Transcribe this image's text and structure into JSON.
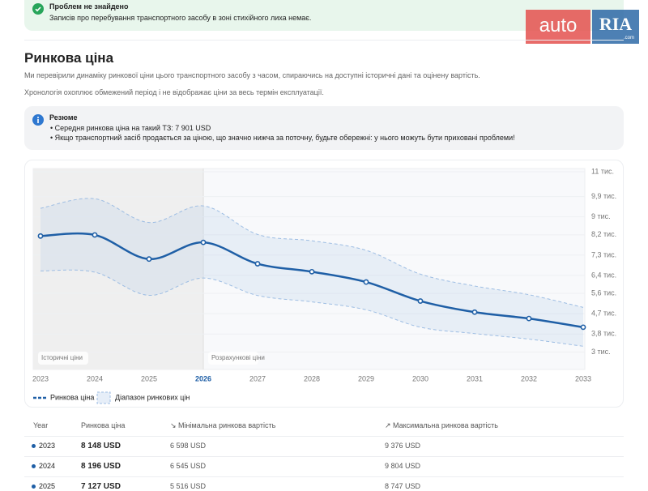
{
  "alert": {
    "title": "Проблем не знайдено",
    "text": "Записів про перебування транспортного засобу в зоні стихійного лиха немає."
  },
  "logo": {
    "left": "auto",
    "right": "RIA",
    "small": ".com"
  },
  "section": {
    "title": "Ринкова ціна",
    "p1": "Ми перевірили динаміку ринкової ціни цього транспортного засобу з часом, спираючись на доступні історичні дані та оцінену вартість.",
    "p2": "Хронологія охоплює обмежений період і не відображає ціни за весь термін експлуатації."
  },
  "summary": {
    "title": "Резюме",
    "items": [
      "Середня ринкова ціна на такий ТЗ: 7 901 USD",
      "Якщо транспортний засіб продається за ціною, що значно нижча за поточну, будьте обережні: у нього можуть бути приховані проблеми!"
    ]
  },
  "chart_data": {
    "type": "line",
    "x": [
      2023,
      2024,
      2025,
      2026,
      2027,
      2028,
      2029,
      2030,
      2031,
      2032,
      2033
    ],
    "forecast_start": 2026,
    "annotations": [
      "Історичні ціни",
      "Розрахункові ціни"
    ],
    "series": [
      {
        "name": "Ринкова ціна",
        "color": "#1f5fa6",
        "values": [
          8148,
          8196,
          7127,
          7866,
          6916,
          6564,
          6106,
          5262,
          4769,
          4487,
          4100
        ]
      }
    ],
    "band": {
      "name": "Діапазон ринкових цін",
      "color": "#9dbde3",
      "lower": [
        6598,
        6545,
        5516,
        6282,
        5508,
        5226,
        4874,
        4100,
        3818,
        3572,
        3255
      ],
      "upper": [
        9376,
        9804,
        8747,
        9486,
        8218,
        7937,
        7514,
        6458,
        5930,
        5543,
        4980
      ]
    },
    "ylim": [
      2800,
      11000
    ],
    "yticks": [
      {
        "value": 11000,
        "label": "11 тис."
      },
      {
        "value": 9900,
        "label": "9,9 тис."
      },
      {
        "value": 9000,
        "label": "9 тис."
      },
      {
        "value": 8200,
        "label": "8,2 тис."
      },
      {
        "value": 7300,
        "label": "7,3 тис."
      },
      {
        "value": 6400,
        "label": "6,4 тис."
      },
      {
        "value": 5600,
        "label": "5,6 тис."
      },
      {
        "value": 4700,
        "label": "4,7 тис."
      },
      {
        "value": 3800,
        "label": "3,8 тис."
      },
      {
        "value": 3000,
        "label": "3 тис."
      }
    ],
    "grid": true
  },
  "table": {
    "headers": [
      "Year",
      "Ринкова ціна",
      "↘ Мінімальна ринкова вартість",
      "↗ Максимальна ринкова вартість"
    ],
    "rows": [
      [
        "2023",
        "8 148 USD",
        "6 598 USD",
        "9 376 USD"
      ],
      [
        "2024",
        "8 196 USD",
        "6 545 USD",
        "9 804 USD"
      ],
      [
        "2025",
        "7 127 USD",
        "5 516 USD",
        "8 747 USD"
      ]
    ]
  }
}
